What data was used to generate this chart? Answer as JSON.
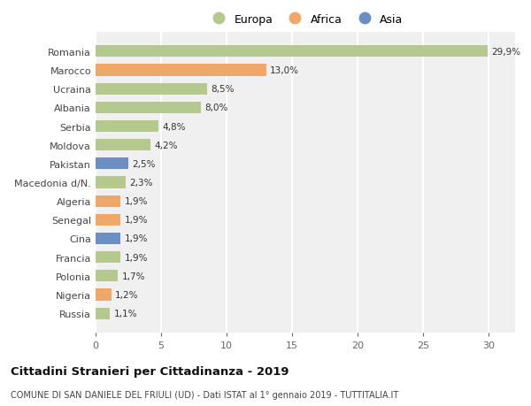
{
  "countries": [
    "Russia",
    "Nigeria",
    "Polonia",
    "Francia",
    "Cina",
    "Senegal",
    "Algeria",
    "Macedonia d/N.",
    "Pakistan",
    "Moldova",
    "Serbia",
    "Albania",
    "Ucraina",
    "Marocco",
    "Romania"
  ],
  "values": [
    1.1,
    1.2,
    1.7,
    1.9,
    1.9,
    1.9,
    1.9,
    2.3,
    2.5,
    4.2,
    4.8,
    8.0,
    8.5,
    13.0,
    29.9
  ],
  "labels": [
    "1,1%",
    "1,2%",
    "1,7%",
    "1,9%",
    "1,9%",
    "1,9%",
    "1,9%",
    "2,3%",
    "2,5%",
    "4,2%",
    "4,8%",
    "8,0%",
    "8,5%",
    "13,0%",
    "29,9%"
  ],
  "continents": [
    "Europa",
    "Africa",
    "Europa",
    "Europa",
    "Asia",
    "Africa",
    "Africa",
    "Europa",
    "Asia",
    "Europa",
    "Europa",
    "Europa",
    "Europa",
    "Africa",
    "Europa"
  ],
  "colors": {
    "Europa": "#b5c98e",
    "Africa": "#f0a868",
    "Asia": "#6b8fc4"
  },
  "title1": "Cittadini Stranieri per Cittadinanza - 2019",
  "title2": "COMUNE DI SAN DANIELE DEL FRIULI (UD) - Dati ISTAT al 1° gennaio 2019 - TUTTITALIA.IT",
  "xlim": [
    0,
    32
  ],
  "xticks": [
    0,
    5,
    10,
    15,
    20,
    25,
    30
  ],
  "background_color": "#ffffff",
  "plot_bg_color": "#f0f0f0",
  "grid_color": "#ffffff",
  "bar_height": 0.62,
  "figsize": [
    6.0,
    4.6
  ],
  "dpi": 100
}
